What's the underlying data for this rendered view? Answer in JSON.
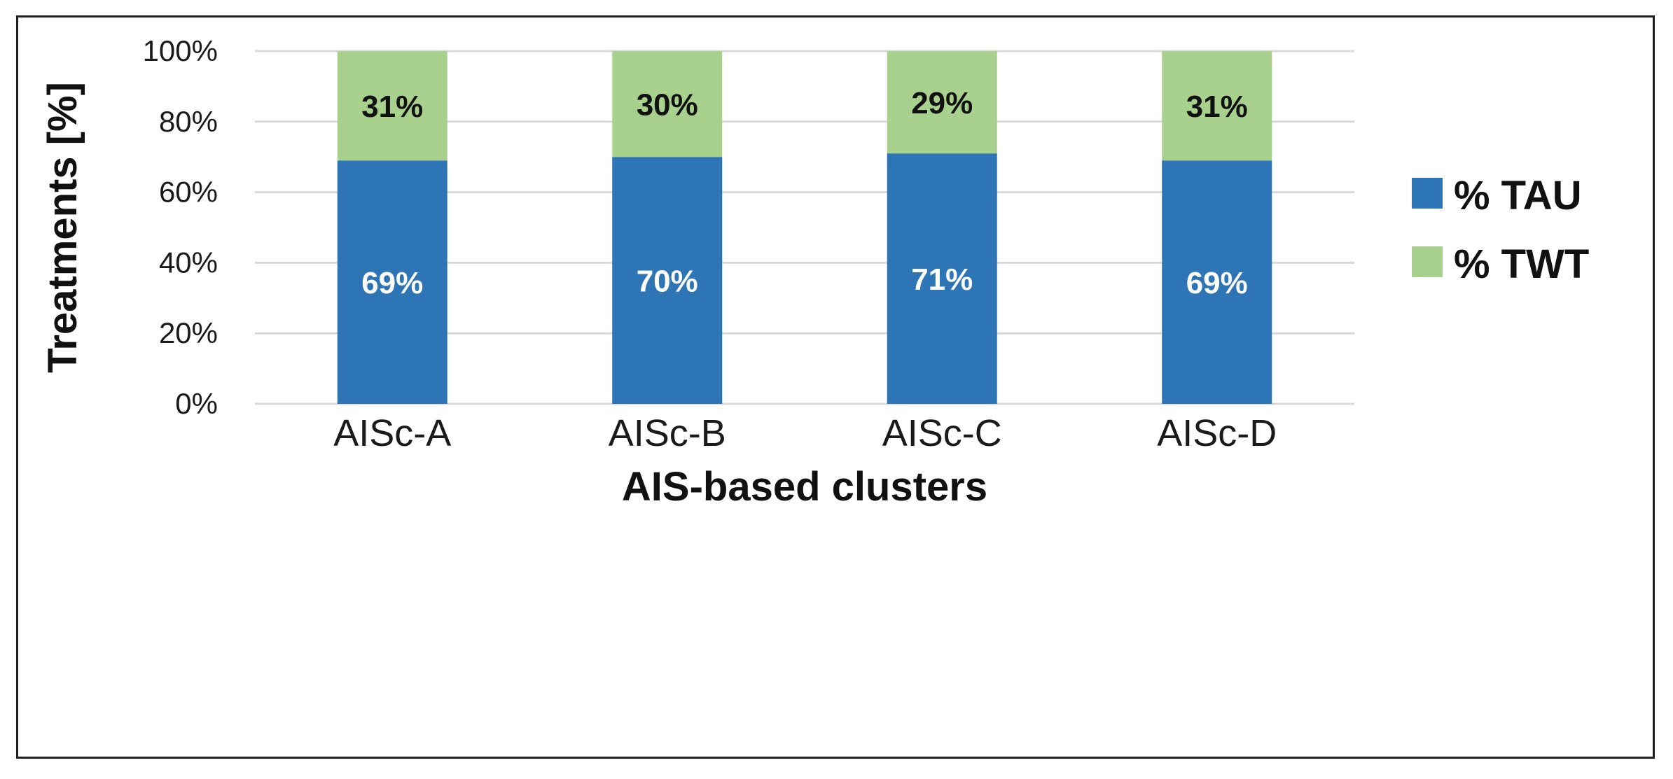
{
  "chart_data": {
    "type": "bar",
    "stacked": true,
    "categories": [
      "AISc-A",
      "AISc-B",
      "AISc-C",
      "AISc-D"
    ],
    "series": [
      {
        "name": "% TAU",
        "values": [
          69,
          70,
          71,
          69
        ],
        "labels": [
          "69%",
          "70%",
          "71%",
          "69%"
        ],
        "color": "#2e75b6",
        "label_color": "#ffffff"
      },
      {
        "name": "% TWT",
        "values": [
          31,
          30,
          29,
          31
        ],
        "labels": [
          "31%",
          "30%",
          "29%",
          "31%"
        ],
        "color": "#a9d18e",
        "label_color": "#111111"
      }
    ],
    "xlabel": "AIS-based clusters",
    "ylabel": "Treatments [%]",
    "ylim": [
      0,
      100
    ],
    "yticks": [
      0,
      20,
      40,
      60,
      80,
      100
    ],
    "ytick_labels": [
      "0%",
      "20%",
      "40%",
      "60%",
      "80%",
      "100%"
    ],
    "grid": true,
    "gridline_color": "#d9d9d9",
    "legend": {
      "placement": "right",
      "entries": [
        "% TAU",
        "% TWT"
      ]
    }
  }
}
